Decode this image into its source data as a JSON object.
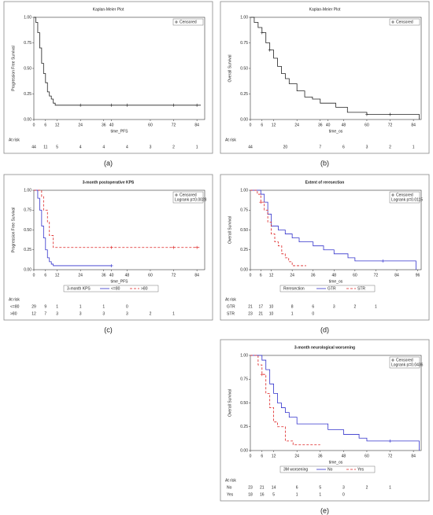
{
  "chart_data": [
    {
      "type": "step",
      "panel_label": "(a)",
      "title": "Kaplan-Meier Plot",
      "xlabel": "time_PFS",
      "ylabel": "Progression Free Survival",
      "xlim": [
        0,
        88
      ],
      "xticks": [
        0,
        6,
        12,
        24,
        36,
        40,
        60,
        72,
        84
      ],
      "ylim": [
        0,
        1
      ],
      "yticks": [
        {
          "value": 0,
          "label": "0.00"
        },
        {
          "value": 0.25,
          "label": "0.25"
        },
        {
          "value": 0.5,
          "label": "0.50"
        },
        {
          "value": 0.75,
          "label": "0.75"
        },
        {
          "value": 1,
          "label": "1.00"
        }
      ],
      "censored_label": "Censored",
      "series": [
        {
          "color": "#222222",
          "dash": false,
          "x": [
            0,
            1,
            2,
            3,
            4,
            5,
            6,
            7,
            8,
            9,
            10,
            11,
            86
          ],
          "values": [
            1,
            0.95,
            0.85,
            0.7,
            0.55,
            0.45,
            0.36,
            0.27,
            0.23,
            0.2,
            0.16,
            0.14,
            0.14
          ],
          "censor_x": [
            24,
            40,
            48,
            72,
            84
          ],
          "censor_values": [
            0.14,
            0.14,
            0.14,
            0.14,
            0.14
          ]
        }
      ],
      "at_risk": {
        "label": "At risk",
        "times": [
          0,
          6,
          12,
          24,
          36,
          48,
          60,
          72,
          84
        ],
        "rows": [
          [
            44,
            11,
            5,
            4,
            4,
            4,
            3,
            2,
            1
          ]
        ]
      }
    },
    {
      "type": "step",
      "panel_label": "(b)",
      "title": "Kaplan-Meier Plot",
      "xlabel": "time_os",
      "ylabel": "Overall Survival",
      "xlim": [
        0,
        88
      ],
      "xticks": [
        0,
        6,
        12,
        24,
        36,
        40,
        48,
        60,
        72,
        84
      ],
      "ylim": [
        0,
        1
      ],
      "yticks": [
        {
          "value": 0,
          "label": "0.00"
        },
        {
          "value": 0.25,
          "label": "0.25"
        },
        {
          "value": 0.5,
          "label": "0.50"
        },
        {
          "value": 0.75,
          "label": "0.75"
        },
        {
          "value": 1,
          "label": "1.00"
        }
      ],
      "censored_label": "Censored",
      "series": [
        {
          "color": "#222222",
          "dash": false,
          "x": [
            0,
            2,
            4,
            6,
            8,
            10,
            12,
            14,
            16,
            18,
            20,
            24,
            28,
            32,
            36,
            44,
            50,
            60,
            86,
            87
          ],
          "values": [
            1,
            0.95,
            0.9,
            0.85,
            0.75,
            0.68,
            0.6,
            0.52,
            0.45,
            0.4,
            0.35,
            0.28,
            0.22,
            0.2,
            0.16,
            0.12,
            0.07,
            0.05,
            0.05,
            0
          ],
          "censor_x": [
            6,
            10,
            60,
            72
          ],
          "censor_values": [
            0.85,
            0.68,
            0.05,
            0.05
          ]
        }
      ],
      "at_risk": {
        "label": "At risk",
        "times": [
          0,
          18,
          36,
          48,
          60,
          72,
          84
        ],
        "rows": [
          [
            44,
            20,
            7,
            6,
            3,
            2,
            1
          ]
        ]
      }
    },
    {
      "type": "step",
      "panel_label": "(c)",
      "title": "3-month postoperative KPS",
      "xlabel": "time_PFS",
      "ylabel": "Progression Free Survival",
      "xlim": [
        0,
        88
      ],
      "xticks": [
        0,
        6,
        12,
        24,
        36,
        40,
        48,
        60,
        72,
        84
      ],
      "ylim": [
        0,
        1
      ],
      "yticks": [
        {
          "value": 0,
          "label": "0.00"
        },
        {
          "value": 0.25,
          "label": "0.25"
        },
        {
          "value": 0.5,
          "label": "0.50"
        },
        {
          "value": 0.75,
          "label": "0.75"
        },
        {
          "value": 1,
          "label": "1.00"
        }
      ],
      "censored_label": "Censored",
      "annotation": "Logrank p=0.0028",
      "legend_title": "3-month KPS",
      "series": [
        {
          "name": "<=80",
          "color": "#3333cc",
          "dash": false,
          "x": [
            0,
            2,
            3,
            4,
            5,
            6,
            7,
            8,
            9,
            10,
            40
          ],
          "values": [
            1,
            0.9,
            0.75,
            0.55,
            0.4,
            0.25,
            0.15,
            0.1,
            0.07,
            0.05,
            0.05
          ],
          "censor_x": [
            40
          ],
          "censor_values": [
            0.05
          ]
        },
        {
          "name": ">80",
          "color": "#dd2222",
          "dash": true,
          "x": [
            0,
            4,
            5,
            6,
            7,
            8,
            9,
            10,
            86
          ],
          "values": [
            1,
            0.92,
            0.75,
            0.75,
            0.6,
            0.43,
            0.43,
            0.28,
            0.28
          ],
          "censor_x": [
            40,
            72,
            84
          ],
          "censor_values": [
            0.28,
            0.28,
            0.28
          ]
        }
      ],
      "at_risk": {
        "label": "At risk",
        "times": [
          0,
          6,
          12,
          24,
          36,
          48,
          60,
          72
        ],
        "rows": [
          [
            29,
            9,
            1,
            1,
            1,
            0,
            null,
            null
          ],
          [
            12,
            7,
            3,
            3,
            3,
            3,
            2,
            1
          ]
        ]
      }
    },
    {
      "type": "step",
      "panel_label": "(d)",
      "title": "Extent of reresection",
      "xlabel": "time_os",
      "ylabel": "Overall Survival",
      "xlim": [
        0,
        98
      ],
      "xticks": [
        0,
        6,
        12,
        24,
        36,
        48,
        60,
        72,
        84,
        96
      ],
      "ylim": [
        0,
        1
      ],
      "yticks": [
        {
          "value": 0,
          "label": "0.00"
        },
        {
          "value": 0.25,
          "label": "0.25"
        },
        {
          "value": 0.5,
          "label": "0.50"
        },
        {
          "value": 0.75,
          "label": "0.75"
        },
        {
          "value": 1,
          "label": "1.00"
        }
      ],
      "censored_label": "Censored",
      "annotation": "Logrank p=0.0115",
      "legend_title": "Reresection",
      "series": [
        {
          "name": "GTR",
          "color": "#3333cc",
          "dash": false,
          "x": [
            0,
            6,
            8,
            10,
            12,
            16,
            20,
            24,
            28,
            36,
            42,
            48,
            56,
            60,
            94,
            95
          ],
          "values": [
            1,
            0.95,
            0.85,
            0.7,
            0.55,
            0.5,
            0.45,
            0.4,
            0.35,
            0.3,
            0.25,
            0.2,
            0.15,
            0.11,
            0.11,
            0
          ],
          "censor_x": [
            76
          ],
          "censor_values": [
            0.11
          ]
        },
        {
          "name": "STR",
          "color": "#dd2222",
          "dash": true,
          "x": [
            0,
            4,
            6,
            8,
            10,
            12,
            14,
            16,
            18,
            20,
            22,
            24,
            32
          ],
          "values": [
            1,
            0.95,
            0.85,
            0.75,
            0.6,
            0.45,
            0.35,
            0.3,
            0.2,
            0.15,
            0.1,
            0.05,
            0.05
          ],
          "censor_x": [
            6
          ],
          "censor_values": [
            0.85
          ]
        }
      ],
      "at_risk": {
        "label": "At risk",
        "times": [
          0,
          6,
          12,
          24,
          36,
          48,
          60,
          72
        ],
        "rows": [
          [
            21,
            17,
            10,
            8,
            6,
            3,
            2,
            1
          ],
          [
            23,
            21,
            10,
            1,
            0,
            null,
            null,
            null
          ]
        ]
      }
    },
    {
      "type": "step",
      "panel_label": "(e)",
      "title": "3-month neurological worsening",
      "xlabel": "time_os",
      "ylabel": "Overall Survival",
      "xlim": [
        0,
        88
      ],
      "xticks": [
        0,
        6,
        12,
        24,
        36,
        48,
        60,
        72,
        84
      ],
      "ylim": [
        0,
        1
      ],
      "yticks": [
        {
          "value": 0,
          "label": "0.00"
        },
        {
          "value": 0.25,
          "label": "0.25"
        },
        {
          "value": 0.5,
          "label": "0.50"
        },
        {
          "value": 0.75,
          "label": "0.75"
        },
        {
          "value": 1,
          "label": "1.00"
        }
      ],
      "censored_label": "Censored",
      "annotation": "Logrank p=0.0436",
      "legend_title": "3M worsening",
      "series": [
        {
          "name": "No",
          "color": "#3333cc",
          "dash": false,
          "x": [
            0,
            6,
            8,
            10,
            12,
            14,
            16,
            18,
            20,
            24,
            36,
            40,
            48,
            56,
            60,
            86,
            87
          ],
          "values": [
            1,
            0.95,
            0.85,
            0.7,
            0.6,
            0.5,
            0.45,
            0.4,
            0.35,
            0.28,
            0.28,
            0.22,
            0.17,
            0.13,
            0.1,
            0.1,
            0
          ],
          "censor_x": [
            72
          ],
          "censor_values": [
            0.1
          ]
        },
        {
          "name": "Yes",
          "color": "#dd2222",
          "dash": true,
          "x": [
            0,
            4,
            6,
            8,
            10,
            12,
            14,
            18,
            22,
            36
          ],
          "values": [
            1,
            0.9,
            0.8,
            0.6,
            0.45,
            0.3,
            0.25,
            0.1,
            0.06,
            0.06
          ],
          "censor_x": [
            6
          ],
          "censor_values": [
            0.8
          ]
        }
      ],
      "at_risk": {
        "label": "At risk",
        "times": [
          0,
          6,
          12,
          24,
          36,
          48,
          60,
          72
        ],
        "rows": [
          [
            23,
            21,
            14,
            6,
            5,
            3,
            2,
            1
          ],
          [
            18,
            16,
            5,
            1,
            1,
            0,
            null,
            null
          ]
        ]
      }
    }
  ]
}
